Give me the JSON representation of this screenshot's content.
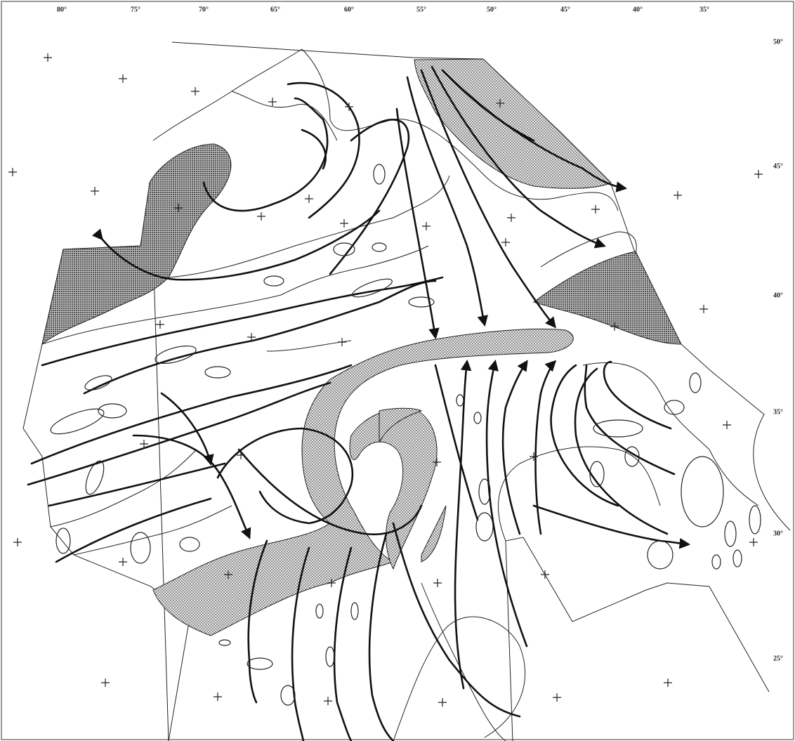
{
  "longitude_labels": [
    "80°",
    "75°",
    "70°",
    "65°",
    "60°",
    "55°",
    "50°",
    "45°",
    "40°",
    "35°"
  ],
  "latitude_labels": [
    "50°",
    "45°",
    "40°",
    "35°",
    "30°",
    "25°"
  ]
}
